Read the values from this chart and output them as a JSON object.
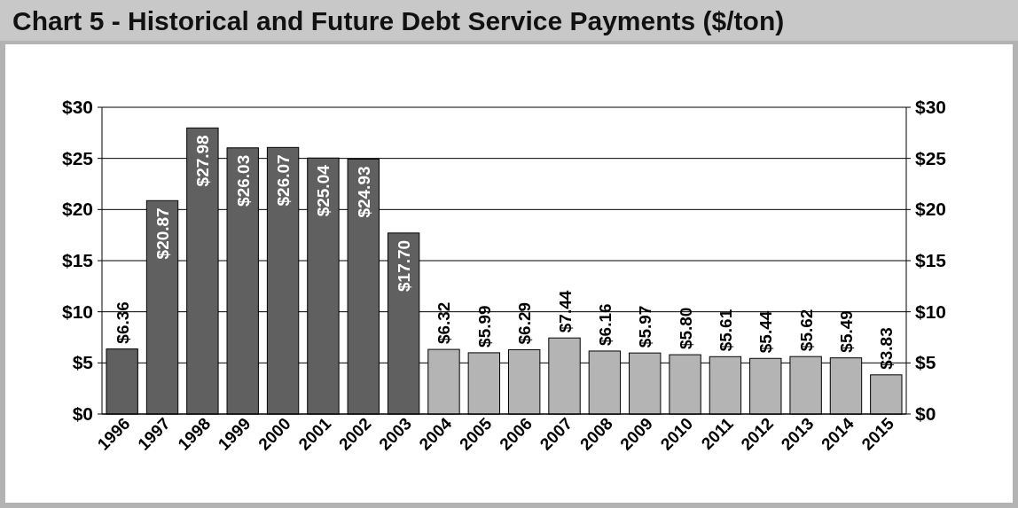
{
  "chart_data": {
    "type": "bar",
    "title": "Chart 5 - Historical and Future Debt Service Payments ($/ton)",
    "categories": [
      "1996",
      "1997",
      "1998",
      "1999",
      "2000",
      "2001",
      "2002",
      "2003",
      "2004",
      "2005",
      "2006",
      "2007",
      "2008",
      "2009",
      "2010",
      "2011",
      "2012",
      "2013",
      "2014",
      "2015"
    ],
    "values": [
      6.36,
      20.87,
      27.98,
      26.03,
      26.07,
      25.04,
      24.93,
      17.7,
      6.32,
      5.99,
      6.29,
      7.44,
      6.16,
      5.97,
      5.8,
      5.61,
      5.44,
      5.62,
      5.49,
      3.83
    ],
    "colors": [
      "#606060",
      "#606060",
      "#606060",
      "#606060",
      "#606060",
      "#606060",
      "#606060",
      "#606060",
      "#b4b4b4",
      "#b4b4b4",
      "#b4b4b4",
      "#b4b4b4",
      "#b4b4b4",
      "#b4b4b4",
      "#b4b4b4",
      "#b4b4b4",
      "#b4b4b4",
      "#b4b4b4",
      "#b4b4b4",
      "#b4b4b4"
    ],
    "value_labels": [
      "$6.36",
      "$20.87",
      "$27.98",
      "$26.03",
      "$26.07",
      "$25.04",
      "$24.93",
      "$17.70",
      "$6.32",
      "$5.99",
      "$6.29",
      "$7.44",
      "$6.16",
      "$5.97",
      "$5.80",
      "$5.61",
      "$5.44",
      "$5.62",
      "$5.49",
      "$3.83"
    ],
    "ylim": [
      0,
      30
    ],
    "yticks": [
      {
        "value": 0,
        "label": "$0"
      },
      {
        "value": 5,
        "label": "$5"
      },
      {
        "value": 10,
        "label": "$10"
      },
      {
        "value": 15,
        "label": "$15"
      },
      {
        "value": 20,
        "label": "$20"
      },
      {
        "value": 25,
        "label": "$25"
      },
      {
        "value": 30,
        "label": "$30"
      }
    ],
    "y2lim": [
      0,
      30
    ],
    "y2ticks": [
      {
        "value": 0,
        "label": "$0"
      },
      {
        "value": 5,
        "label": "$5"
      },
      {
        "value": 10,
        "label": "$10"
      },
      {
        "value": 15,
        "label": "$15"
      },
      {
        "value": 20,
        "label": "$20"
      },
      {
        "value": 25,
        "label": "$25"
      },
      {
        "value": 30,
        "label": "$30"
      }
    ],
    "grid": "y"
  }
}
